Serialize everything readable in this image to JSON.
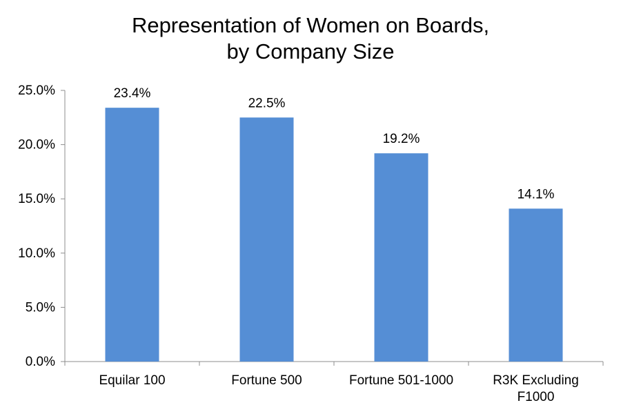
{
  "chart_data": {
    "type": "bar",
    "title": [
      "Representation of Women on Boards,",
      "by Company Size"
    ],
    "xlabel": "",
    "ylabel": "",
    "categories": [
      [
        "Equilar 100"
      ],
      [
        "Fortune 500"
      ],
      [
        "Fortune 501-1000"
      ],
      [
        "R3K Excluding",
        "F1000"
      ]
    ],
    "values": [
      23.4,
      22.5,
      19.2,
      14.1
    ],
    "data_labels": [
      "23.4%",
      "22.5%",
      "19.2%",
      "14.1%"
    ],
    "y_ticks": [
      0,
      5,
      10,
      15,
      20,
      25
    ],
    "y_tick_labels": [
      "0.0%",
      "5.0%",
      "10.0%",
      "15.0%",
      "20.0%",
      "25.0%"
    ],
    "ylim": [
      0,
      25
    ],
    "grid": false,
    "legend": "none",
    "bar_color": "#558ed5"
  }
}
